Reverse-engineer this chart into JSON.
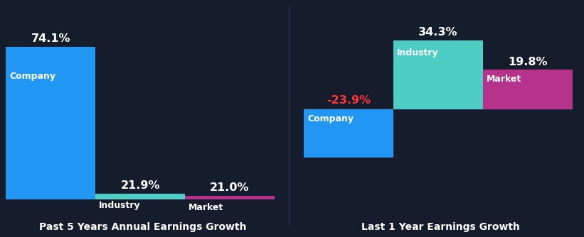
{
  "background_color": "#151c2c",
  "divider_color": "#2a3550",
  "baseline_color": "#2a3550",
  "chart1": {
    "title": "Past 5 Years Annual Earnings Growth",
    "bars": [
      {
        "label": "Company",
        "value": 74.1,
        "color": "#2196f3"
      },
      {
        "label": "Industry",
        "value": 21.9,
        "color": "#4ecdc4"
      },
      {
        "label": "Market",
        "value": 21.0,
        "color": "#b5338a"
      }
    ]
  },
  "chart2": {
    "title": "Last 1 Year Earnings Growth",
    "bars": [
      {
        "label": "Company",
        "value": -23.9,
        "color": "#2196f3"
      },
      {
        "label": "Industry",
        "value": 34.3,
        "color": "#4ecdc4"
      },
      {
        "label": "Market",
        "value": 19.8,
        "color": "#b5338a"
      }
    ]
  },
  "label_fontsize": 9.0,
  "value_fontsize": 11.5,
  "title_fontsize": 10.0,
  "neg_value_color": "#ff3333",
  "pos_value_color": "#ffffff",
  "bar_label_color": "#ffffff",
  "title_color": "#ffffff"
}
